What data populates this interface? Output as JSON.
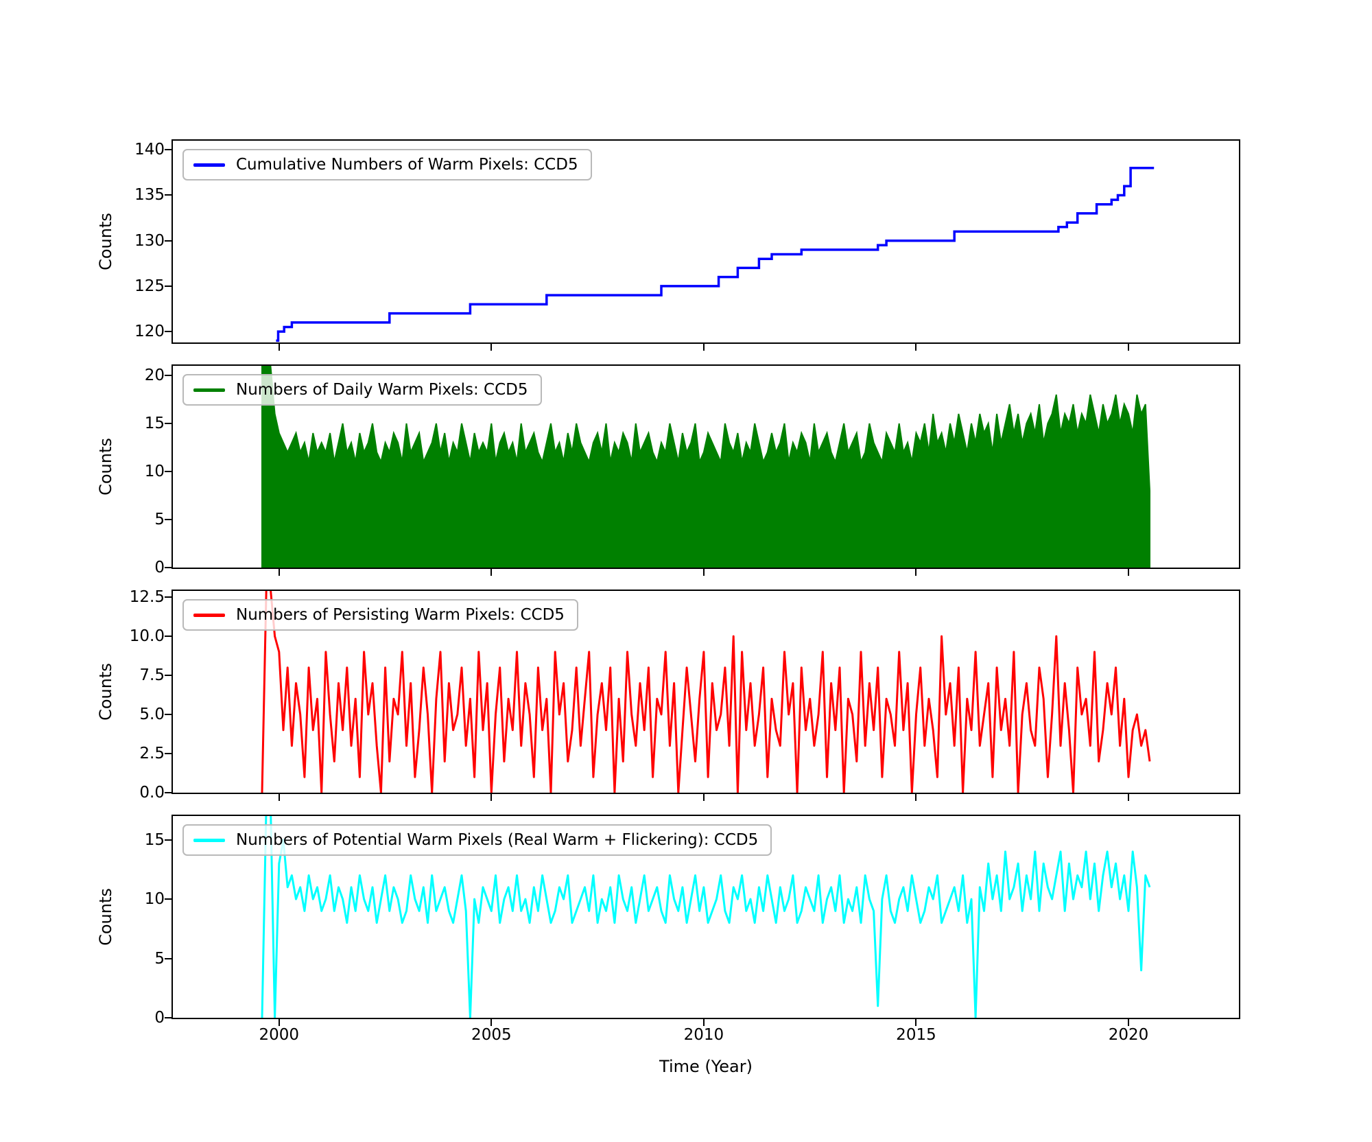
{
  "figure": {
    "background": "#ffffff"
  },
  "chart_data": [
    {
      "type": "step",
      "legend": "Cumulative Numbers of Warm Pixels: CCD5",
      "color": "#0000ff",
      "ylabel": "Counts",
      "ylim": [
        118.8,
        141.0
      ],
      "yticks": [
        120,
        125,
        130,
        135,
        140
      ],
      "ytick_labels": [
        "120",
        "125",
        "130",
        "135",
        "140"
      ],
      "xlim": [
        1997.5,
        2022.6
      ],
      "xticks": [
        2000,
        2005,
        2010,
        2015,
        2020
      ],
      "steps": [
        [
          1999.93,
          119
        ],
        [
          1999.98,
          120
        ],
        [
          2000.12,
          120.5
        ],
        [
          2000.3,
          121
        ],
        [
          2002.6,
          122
        ],
        [
          2004.5,
          123
        ],
        [
          2006.3,
          124
        ],
        [
          2009.0,
          125
        ],
        [
          2010.35,
          126
        ],
        [
          2010.8,
          127
        ],
        [
          2011.3,
          128
        ],
        [
          2011.6,
          128.5
        ],
        [
          2012.3,
          129
        ],
        [
          2014.1,
          129.5
        ],
        [
          2014.3,
          130
        ],
        [
          2015.9,
          131
        ],
        [
          2018.35,
          131.5
        ],
        [
          2018.55,
          132
        ],
        [
          2018.8,
          133
        ],
        [
          2019.25,
          134
        ],
        [
          2019.6,
          134.5
        ],
        [
          2019.75,
          135
        ],
        [
          2019.9,
          136
        ],
        [
          2020.05,
          138
        ],
        [
          2020.6,
          138
        ]
      ]
    },
    {
      "type": "area",
      "legend": "Numbers of Daily Warm Pixels: CCD5",
      "color": "#008000",
      "ylabel": "Counts",
      "ylim": [
        0,
        21
      ],
      "yticks": [
        0,
        5,
        10,
        15,
        20
      ],
      "ytick_labels": [
        "0",
        "5",
        "10",
        "15",
        "20"
      ],
      "xlim": [
        1997.5,
        2022.6
      ],
      "xticks": [
        2000,
        2005,
        2010,
        2015,
        2020
      ],
      "x0": 1999.6,
      "dx": 0.1,
      "values": [
        22,
        22,
        21,
        16,
        14,
        13,
        12,
        13,
        14,
        12,
        13,
        11,
        14,
        12,
        13,
        12,
        14,
        11,
        13,
        15,
        12,
        13,
        11,
        14,
        12,
        13,
        15,
        12,
        11,
        13,
        12,
        14,
        13,
        11,
        15,
        12,
        13,
        14,
        11,
        12,
        13,
        15,
        12,
        14,
        11,
        13,
        12,
        15,
        13,
        11,
        14,
        12,
        13,
        12,
        15,
        11,
        13,
        14,
        12,
        13,
        11,
        15,
        12,
        13,
        14,
        12,
        11,
        13,
        15,
        12,
        13,
        11,
        14,
        12,
        15,
        13,
        12,
        11,
        13,
        14,
        12,
        15,
        11,
        13,
        12,
        14,
        13,
        11,
        15,
        12,
        13,
        14,
        12,
        11,
        13,
        12,
        15,
        13,
        11,
        14,
        12,
        13,
        15,
        11,
        12,
        14,
        13,
        12,
        11,
        15,
        13,
        12,
        14,
        11,
        13,
        12,
        15,
        13,
        11,
        12,
        14,
        12,
        13,
        15,
        11,
        13,
        12,
        14,
        13,
        11,
        15,
        12,
        13,
        14,
        12,
        11,
        13,
        15,
        12,
        13,
        14,
        11,
        12,
        15,
        13,
        12,
        11,
        14,
        13,
        12,
        15,
        12,
        13,
        11,
        14,
        13,
        15,
        12,
        16,
        13,
        14,
        12,
        15,
        13,
        16,
        14,
        12,
        15,
        13,
        16,
        14,
        15,
        12,
        16,
        13,
        15,
        17,
        14,
        16,
        13,
        15,
        16,
        14,
        17,
        13,
        15,
        16,
        18,
        14,
        16,
        15,
        17,
        14,
        16,
        15,
        18,
        16,
        14,
        17,
        15,
        16,
        18,
        15,
        17,
        16,
        14,
        18,
        16,
        17,
        8
      ]
    },
    {
      "type": "line",
      "legend": "Numbers of Persisting Warm Pixels: CCD5",
      "color": "#ff0000",
      "ylabel": "Counts",
      "ylim": [
        0,
        12.9
      ],
      "yticks": [
        0,
        2.5,
        5,
        7.5,
        10,
        12.5
      ],
      "ytick_labels": [
        "0.0",
        "2.5",
        "5.0",
        "7.5",
        "10.0",
        "12.5"
      ],
      "xlim": [
        1997.5,
        2022.6
      ],
      "xticks": [
        2000,
        2005,
        2010,
        2015,
        2020
      ],
      "x0": 1999.6,
      "dx": 0.1,
      "values": [
        0,
        13,
        13,
        10,
        9,
        4,
        8,
        3,
        7,
        5,
        1,
        8,
        4,
        6,
        0,
        9,
        5,
        2,
        7,
        4,
        8,
        3,
        6,
        1,
        9,
        5,
        7,
        3,
        0,
        8,
        2,
        6,
        5,
        9,
        3,
        7,
        1,
        4,
        8,
        5,
        0,
        6,
        9,
        2,
        7,
        4,
        5,
        8,
        3,
        6,
        1,
        9,
        4,
        7,
        0,
        5,
        8,
        2,
        6,
        4,
        9,
        3,
        7,
        5,
        1,
        8,
        4,
        6,
        0,
        9,
        5,
        7,
        2,
        4,
        8,
        3,
        6,
        9,
        1,
        5,
        7,
        4,
        8,
        0,
        6,
        2,
        9,
        5,
        3,
        7,
        4,
        8,
        1,
        6,
        5,
        9,
        3,
        7,
        0,
        4,
        8,
        5,
        2,
        6,
        9,
        1,
        7,
        4,
        5,
        8,
        3,
        10,
        0,
        9,
        4,
        7,
        3,
        5,
        8,
        1,
        6,
        4,
        3,
        9,
        5,
        7,
        0,
        8,
        4,
        6,
        3,
        5,
        9,
        1,
        7,
        4,
        8,
        0,
        6,
        5,
        2,
        9,
        3,
        7,
        4,
        8,
        1,
        6,
        5,
        3,
        9,
        4,
        7,
        0,
        5,
        8,
        3,
        6,
        4,
        1,
        10,
        5,
        7,
        3,
        8,
        0,
        6,
        4,
        9,
        3,
        5,
        7,
        1,
        8,
        4,
        6,
        3,
        9,
        0,
        5,
        7,
        4,
        3,
        8,
        6,
        1,
        5,
        10,
        3,
        7,
        4,
        0,
        8,
        5,
        6,
        3,
        9,
        2,
        4,
        7,
        5,
        8,
        3,
        6,
        1,
        4,
        5,
        3,
        4,
        2
      ]
    },
    {
      "type": "line",
      "legend": "Numbers of Potential Warm Pixels (Real Warm + Flickering): CCD5",
      "color": "#00ffff",
      "ylabel": "Counts",
      "ylim": [
        0,
        17
      ],
      "yticks": [
        0,
        5,
        10,
        15
      ],
      "ytick_labels": [
        "0",
        "5",
        "10",
        "15"
      ],
      "xlim": [
        1997.5,
        2022.6
      ],
      "xticks": [
        2000,
        2005,
        2010,
        2015,
        2020
      ],
      "xtick_labels": [
        "2000",
        "2005",
        "2010",
        "2015",
        "2020"
      ],
      "xlabel": "Time (Year)",
      "x0": 1999.6,
      "dx": 0.1,
      "values": [
        0,
        18,
        18,
        0,
        13,
        15,
        11,
        12,
        10,
        11,
        9,
        12,
        10,
        11,
        9,
        10,
        12,
        9,
        11,
        10,
        8,
        11,
        9,
        12,
        10,
        9,
        11,
        8,
        10,
        12,
        9,
        11,
        10,
        8,
        9,
        12,
        10,
        9,
        11,
        8,
        12,
        9,
        10,
        11,
        9,
        8,
        10,
        12,
        9,
        0,
        10,
        8,
        11,
        10,
        9,
        12,
        8,
        10,
        11,
        9,
        12,
        9,
        10,
        8,
        11,
        9,
        12,
        10,
        8,
        9,
        11,
        10,
        12,
        8,
        9,
        10,
        11,
        9,
        12,
        8,
        10,
        9,
        11,
        8,
        12,
        10,
        9,
        11,
        8,
        10,
        12,
        9,
        10,
        11,
        9,
        8,
        12,
        10,
        9,
        11,
        8,
        10,
        12,
        9,
        11,
        8,
        9,
        10,
        12,
        9,
        8,
        11,
        10,
        12,
        9,
        10,
        8,
        11,
        9,
        12,
        10,
        8,
        11,
        9,
        10,
        12,
        8,
        9,
        11,
        10,
        9,
        12,
        8,
        10,
        11,
        9,
        12,
        8,
        10,
        9,
        11,
        8,
        12,
        10,
        9,
        1,
        10,
        12,
        9,
        8,
        10,
        11,
        9,
        12,
        10,
        8,
        9,
        11,
        10,
        12,
        8,
        9,
        10,
        11,
        9,
        12,
        8,
        10,
        0,
        11,
        9,
        13,
        10,
        12,
        9,
        14,
        10,
        11,
        13,
        9,
        12,
        10,
        14,
        9,
        13,
        11,
        10,
        12,
        14,
        9,
        13,
        10,
        12,
        11,
        14,
        10,
        13,
        9,
        12,
        14,
        11,
        13,
        10,
        12,
        9,
        14,
        11,
        4,
        12,
        11
      ]
    }
  ]
}
